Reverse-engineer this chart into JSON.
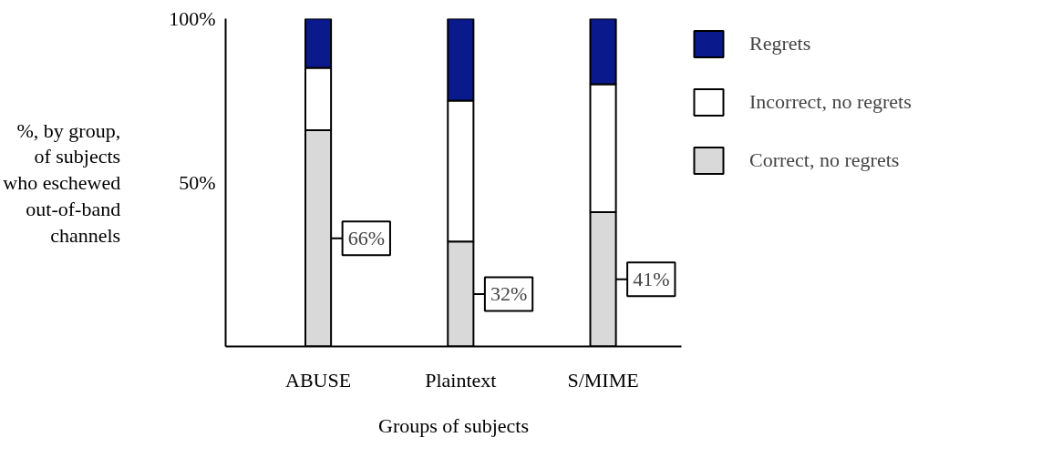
{
  "chart_data": {
    "type": "bar",
    "stacked": true,
    "categories": [
      "ABUSE",
      "Plaintext",
      "S/MIME"
    ],
    "xlabel": "Groups of subjects",
    "ylabel": "%, by group, of subjects who eschewed out-of-band channels",
    "series": [
      {
        "name": "Correct, no regrets",
        "color": "#d9d9d9",
        "values": [
          66,
          32,
          41
        ],
        "value_labels": [
          "66%",
          "32%",
          "41%"
        ]
      },
      {
        "name": "Incorrect, no regrets",
        "color": "#ffffff",
        "values": [
          19,
          43,
          39
        ]
      },
      {
        "name": "Regrets",
        "color": "#0a1a8c",
        "values": [
          15,
          25,
          20
        ]
      }
    ],
    "ylim": [
      0,
      100
    ],
    "yticks": [
      {
        "value": 50,
        "label": "50%"
      },
      {
        "value": 100,
        "label": "100%"
      }
    ],
    "grid": false,
    "legend": "top right"
  }
}
